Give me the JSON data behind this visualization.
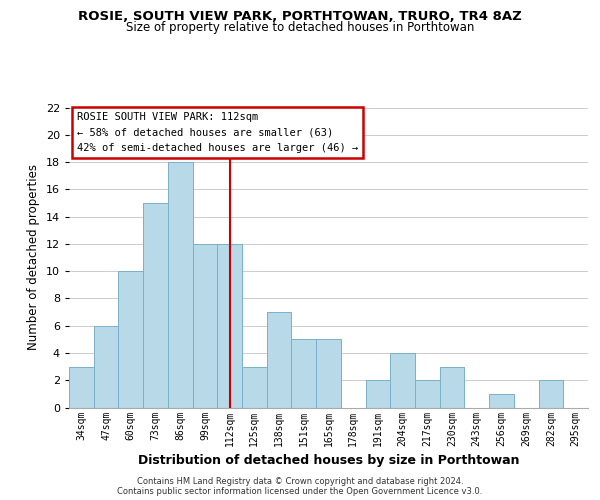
{
  "title": "ROSIE, SOUTH VIEW PARK, PORTHTOWAN, TRURO, TR4 8AZ",
  "subtitle": "Size of property relative to detached houses in Porthtowan",
  "xlabel": "Distribution of detached houses by size in Porthtowan",
  "ylabel": "Number of detached properties",
  "bin_labels": [
    "34sqm",
    "47sqm",
    "60sqm",
    "73sqm",
    "86sqm",
    "99sqm",
    "112sqm",
    "125sqm",
    "138sqm",
    "151sqm",
    "165sqm",
    "178sqm",
    "191sqm",
    "204sqm",
    "217sqm",
    "230sqm",
    "243sqm",
    "256sqm",
    "269sqm",
    "282sqm",
    "295sqm"
  ],
  "values": [
    3,
    6,
    10,
    15,
    18,
    12,
    12,
    3,
    7,
    5,
    5,
    0,
    2,
    4,
    2,
    3,
    0,
    1,
    0,
    2,
    0
  ],
  "bar_color": "#b8d9e8",
  "bar_edge_color": "#7ab0c8",
  "highlight_index": 6,
  "highlight_line_color": "#cc0000",
  "ylim": [
    0,
    22
  ],
  "yticks": [
    0,
    2,
    4,
    6,
    8,
    10,
    12,
    14,
    16,
    18,
    20,
    22
  ],
  "annotation_title": "ROSIE SOUTH VIEW PARK: 112sqm",
  "annotation_line1": "← 58% of detached houses are smaller (63)",
  "annotation_line2": "42% of semi-detached houses are larger (46) →",
  "annotation_box_color": "#ffffff",
  "annotation_box_edge": "#cc0000",
  "footer_line1": "Contains HM Land Registry data © Crown copyright and database right 2024.",
  "footer_line2": "Contains public sector information licensed under the Open Government Licence v3.0.",
  "background_color": "#ffffff",
  "grid_color": "#cccccc"
}
